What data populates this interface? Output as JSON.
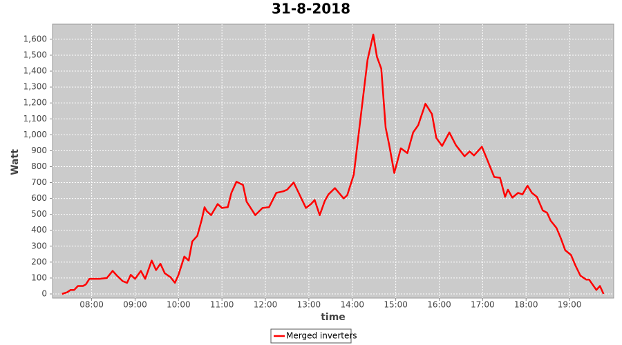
{
  "chart_data": {
    "type": "line",
    "title": "31-8-2018",
    "x_label": "time",
    "y_label": "Watt",
    "x": [
      "07:19",
      "07:26",
      "07:31",
      "07:36",
      "07:41",
      "07:48",
      "07:52",
      "07:57",
      "08:02",
      "08:11",
      "08:21",
      "08:29",
      "08:35",
      "08:43",
      "08:49",
      "08:54",
      "09:00",
      "09:08",
      "09:14",
      "09:23",
      "09:29",
      "09:35",
      "09:41",
      "09:49",
      "09:55",
      "10:00",
      "10:08",
      "10:14",
      "10:19",
      "10:26",
      "10:32",
      "10:36",
      "10:39",
      "10:45",
      "10:54",
      "11:00",
      "11:08",
      "11:13",
      "11:20",
      "11:29",
      "11:34",
      "11:46",
      "11:56",
      "12:05",
      "12:15",
      "12:25",
      "12:30",
      "12:39",
      "12:46",
      "12:56",
      "13:03",
      "13:08",
      "13:15",
      "13:22",
      "13:27",
      "13:36",
      "13:48",
      "13:53",
      "14:02",
      "14:11",
      "14:21",
      "14:29",
      "14:34",
      "14:40",
      "14:46",
      "14:51",
      "14:58",
      "15:07",
      "15:16",
      "15:24",
      "15:31",
      "15:41",
      "15:50",
      "15:56",
      "16:04",
      "16:14",
      "16:23",
      "16:35",
      "16:42",
      "16:48",
      "16:59",
      "17:08",
      "17:16",
      "17:24",
      "17:31",
      "17:35",
      "17:41",
      "17:49",
      "17:55",
      "18:02",
      "18:08",
      "18:15",
      "18:23",
      "18:29",
      "18:34",
      "18:42",
      "18:48",
      "18:54",
      "19:02",
      "19:08",
      "19:15",
      "19:23",
      "19:27",
      "19:37",
      "19:42",
      "19:47"
    ],
    "series": [
      {
        "name": "Merged inverters",
        "color": "#ff0000",
        "values": [
          0,
          10,
          25,
          25,
          50,
          50,
          60,
          95,
          95,
          95,
          100,
          145,
          115,
          80,
          70,
          120,
          95,
          145,
          95,
          210,
          150,
          190,
          130,
          105,
          70,
          120,
          235,
          210,
          330,
          365,
          465,
          545,
          520,
          495,
          565,
          540,
          545,
          635,
          705,
          685,
          580,
          495,
          540,
          545,
          635,
          645,
          655,
          700,
          635,
          540,
          565,
          590,
          495,
          585,
          625,
          665,
          600,
          620,
          750,
          1090,
          1470,
          1630,
          1490,
          1415,
          1045,
          935,
          760,
          915,
          885,
          1015,
          1060,
          1195,
          1130,
          980,
          930,
          1015,
          935,
          865,
          895,
          870,
          925,
          825,
          735,
          730,
          610,
          655,
          605,
          635,
          625,
          680,
          635,
          610,
          525,
          510,
          460,
          415,
          350,
          275,
          245,
          180,
          115,
          90,
          90,
          25,
          50,
          0
        ]
      }
    ],
    "xlim": [
      "07:06",
      "20:01"
    ],
    "xticks": [
      "08:00",
      "09:00",
      "10:00",
      "11:00",
      "12:00",
      "13:00",
      "14:00",
      "15:00",
      "16:00",
      "17:00",
      "18:00",
      "19:00"
    ],
    "ylim": [
      -26,
      1695
    ],
    "yticks": [
      0,
      100,
      200,
      300,
      400,
      500,
      600,
      700,
      800,
      900,
      {
        "value": 1000,
        "label": "1,000"
      },
      {
        "value": 1100,
        "label": "1,100"
      },
      {
        "value": 1200,
        "label": "1,200"
      },
      {
        "value": 1300,
        "label": "1,300"
      },
      {
        "value": 1400,
        "label": "1,400"
      },
      {
        "value": 1500,
        "label": "1,500"
      },
      {
        "value": 1600,
        "label": "1,600"
      }
    ],
    "grid": true
  }
}
